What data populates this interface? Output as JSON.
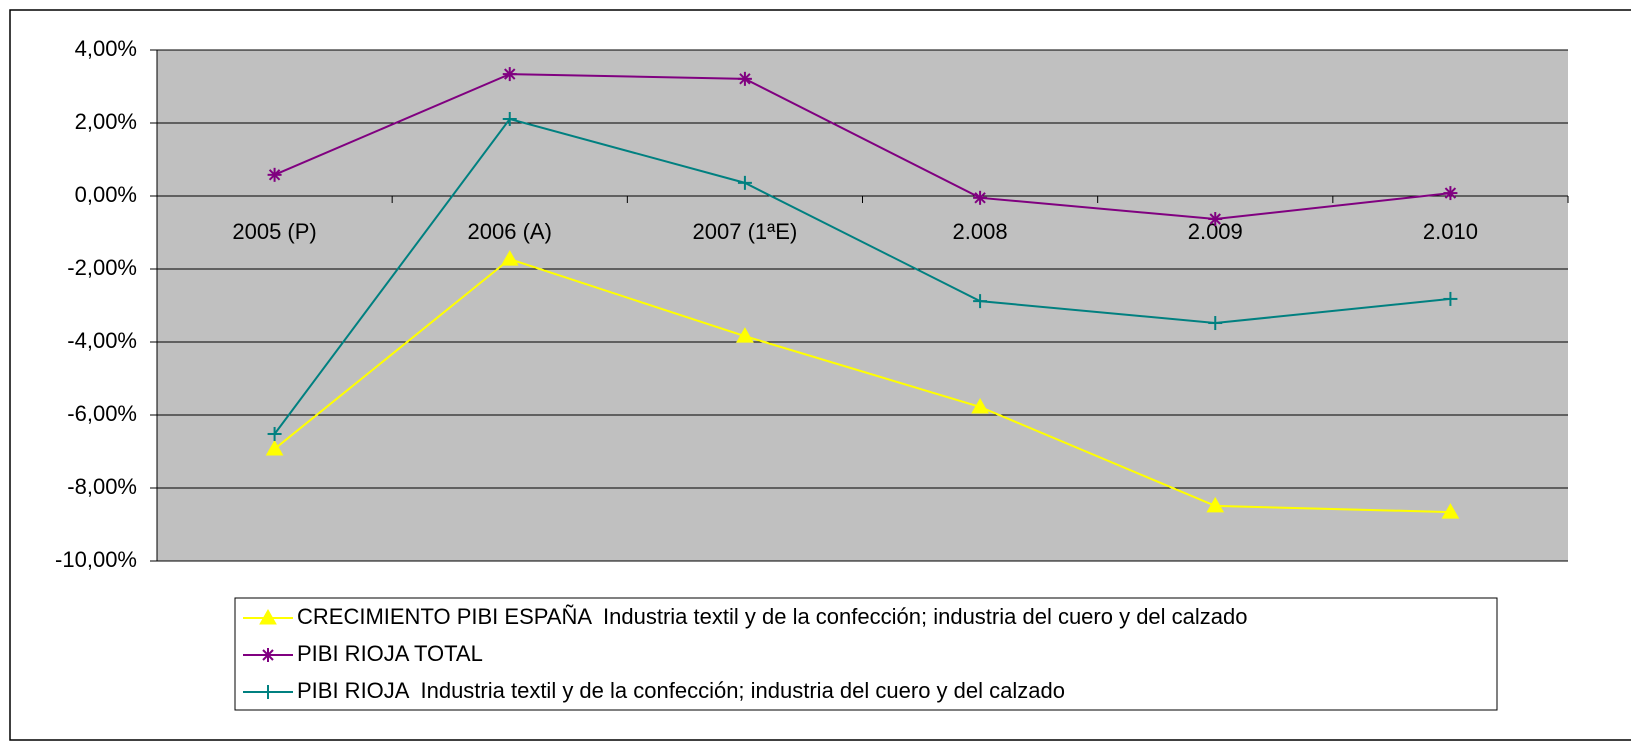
{
  "chart_data": {
    "type": "line",
    "categories": [
      "2005 (P)",
      "2006 (A)",
      "2007 (1ªE)",
      "2.008",
      "2.009",
      "2.010"
    ],
    "series": [
      {
        "name": "CRECIMIENTO PIBI ESPAÑA  Industria textil y de la confección; industria del cuero y del calzado",
        "color": "#ffff00",
        "marker": "triangle",
        "values": [
          -6.93,
          -1.73,
          -3.84,
          -5.78,
          -8.49,
          -8.66
        ]
      },
      {
        "name": "PIBI RIOJA TOTAL",
        "color": "#800080",
        "marker": "asterisk",
        "values": [
          0.58,
          3.34,
          3.21,
          -0.05,
          -0.63,
          0.08
        ]
      },
      {
        "name": "PIBI RIOJA  Industria textil y de la confección; industria del cuero y del calzado",
        "color": "#008080",
        "marker": "plus",
        "values": [
          -6.52,
          2.11,
          0.36,
          -2.88,
          -3.48,
          -2.82
        ]
      }
    ],
    "ylim": [
      -10,
      4
    ],
    "yticks": [
      {
        "value": -10,
        "label": "-10,00%"
      },
      {
        "value": -8,
        "label": "-8,00%"
      },
      {
        "value": -6,
        "label": "-6,00%"
      },
      {
        "value": -4,
        "label": "-4,00%"
      },
      {
        "value": -2,
        "label": "-2,00%"
      },
      {
        "value": 0,
        "label": "0,00%"
      },
      {
        "value": 2,
        "label": "2,00%"
      },
      {
        "value": 4,
        "label": "4,00%"
      }
    ],
    "grid": true,
    "plot_background": "#c0c0c0",
    "legend": "bottom"
  }
}
